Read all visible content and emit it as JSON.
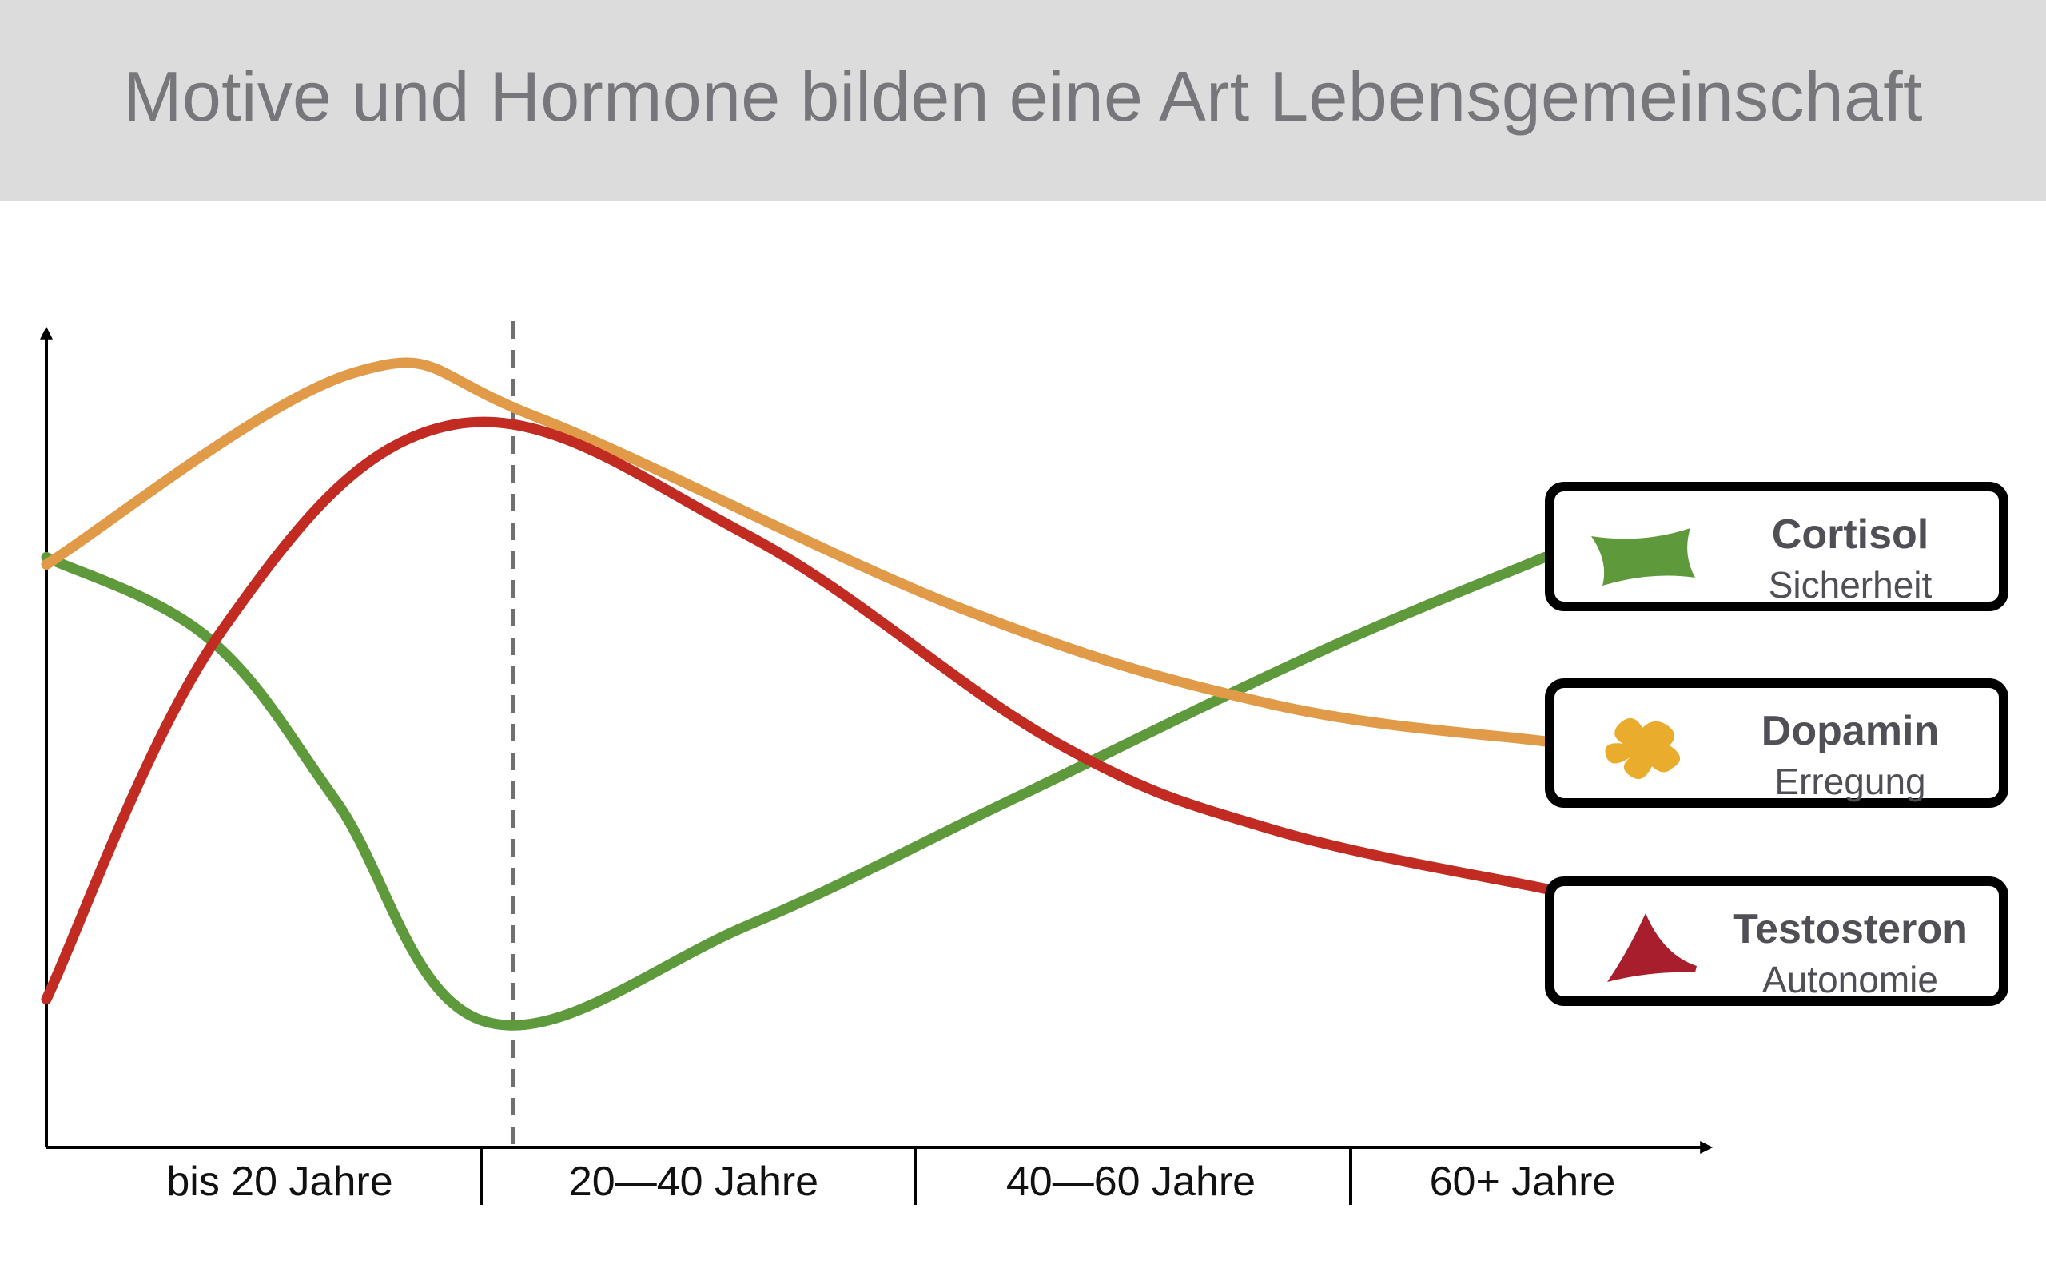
{
  "title": "Motive und Hormone bilden eine Art Lebensgemeinschaft",
  "chart_data": {
    "type": "line",
    "categories": [
      "bis 20 Jahre",
      "20—40 Jahre",
      "40—60 Jahre",
      "60+ Jahre"
    ],
    "x_range": [
      0,
      4
    ],
    "y_range": [
      0,
      1
    ],
    "y_ticks": false,
    "grid": false,
    "marker_x": 0.08,
    "legend_position": "right",
    "series": [
      {
        "name": "Cortisol",
        "subtitle": "Sicherheit",
        "color": "#5e9a3c",
        "icon": "green-rectangle-icon",
        "points": [
          [
            0,
            0.71
          ],
          [
            0.37,
            0.6
          ],
          [
            0.66,
            0.38
          ],
          [
            1.0,
            0.08
          ],
          [
            1.6,
            0.21
          ],
          [
            2.2,
            0.38
          ],
          [
            2.9,
            0.58
          ],
          [
            3.42,
            0.71
          ]
        ]
      },
      {
        "name": "Dopamin",
        "subtitle": "Erregung",
        "color": "#e09a48",
        "icon": "yellow-blob-icon",
        "points": [
          [
            0,
            0.7
          ],
          [
            0.7,
            0.96
          ],
          [
            1.12,
            0.9
          ],
          [
            2.09,
            0.64
          ],
          [
            2.8,
            0.51
          ],
          [
            3.42,
            0.46
          ]
        ]
      },
      {
        "name": "Testosteron",
        "subtitle": "Autonomie",
        "color": "#c22b22",
        "icon": "red-triangle-icon",
        "points": [
          [
            0,
            0.11
          ],
          [
            0.4,
            0.61
          ],
          [
            0.93,
            0.89
          ],
          [
            1.6,
            0.74
          ],
          [
            2.3,
            0.46
          ],
          [
            2.8,
            0.34
          ],
          [
            3.42,
            0.26
          ]
        ]
      }
    ]
  }
}
